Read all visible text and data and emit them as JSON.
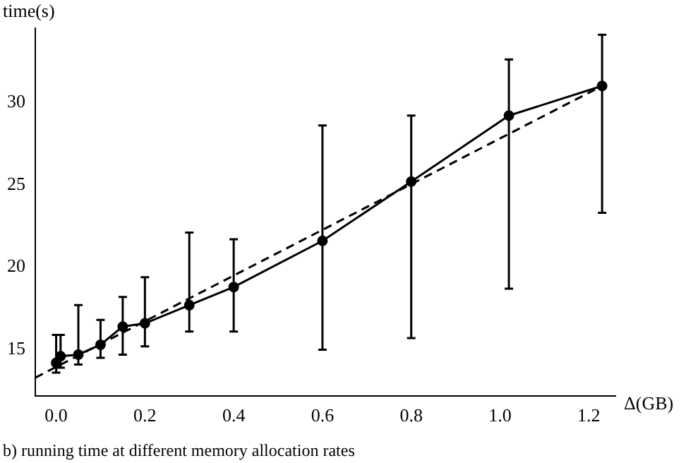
{
  "chart_data": {
    "type": "line",
    "ylabel": "time(s)",
    "xlabel": "Δ(GB)",
    "annotations": [
      "b) running time at different memory allocation rates"
    ],
    "xlim": [
      -0.047,
      1.26
    ],
    "xticks": [
      {
        "value": 0,
        "label": "0.0"
      },
      {
        "value": 0.2,
        "label": "0.2"
      },
      {
        "value": 0.4,
        "label": "0.4"
      },
      {
        "value": 0.6,
        "label": "0.6"
      },
      {
        "value": 0.8,
        "label": "0.8"
      },
      {
        "value": 1,
        "label": "1.0"
      },
      {
        "value": 1.2,
        "label": "1.2"
      }
    ],
    "ylim": [
      12.2,
      34.5
    ],
    "yticks": [
      15,
      20,
      25,
      30
    ],
    "grid": false,
    "legend": false,
    "series": [
      {
        "color": "#000000",
        "marker": "circle",
        "line_style": "solid",
        "x": [
          0,
          0.01,
          0.05,
          0.1,
          0.15,
          0.2,
          0.3,
          0.4,
          0.6,
          0.8,
          1.02,
          1.23
        ],
        "values": [
          14.2,
          14.6,
          14.7,
          15.3,
          16.4,
          16.6,
          17.7,
          18.8,
          21.6,
          25.2,
          29.2,
          31.0
        ],
        "errors": [
          [
            13.6,
            15.9
          ],
          [
            13.9,
            15.9
          ],
          [
            14.1,
            17.7
          ],
          [
            14.5,
            16.8
          ],
          [
            14.7,
            18.2
          ],
          [
            15.2,
            19.4
          ],
          [
            16.1,
            22.1
          ],
          [
            16.1,
            21.7
          ],
          [
            15.0,
            28.6
          ],
          [
            15.7,
            29.2
          ],
          [
            18.7,
            32.6
          ],
          [
            23.3,
            34.1
          ]
        ]
      },
      {
        "type": "line",
        "color": "#000000",
        "marker": "none",
        "line_style": "dashed",
        "x": [
          -0.047,
          1.23
        ],
        "values": [
          13.3,
          31.0
        ]
      }
    ]
  }
}
